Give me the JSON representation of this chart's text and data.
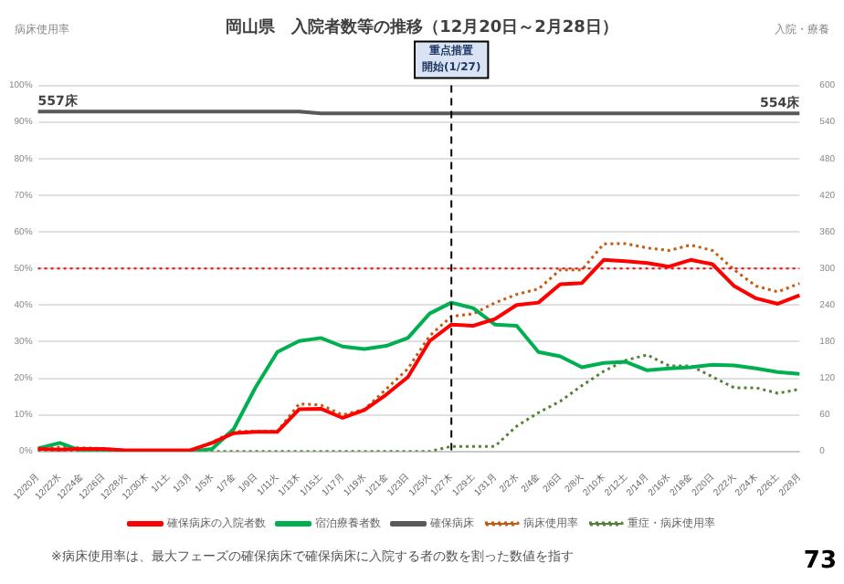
{
  "chart_data": {
    "type": "line",
    "title": "岡山県　入院者数等の推移（12月20日～2月28日）",
    "ylabel": "病床使用率",
    "y2label": "入院・療養",
    "categories": [
      "12/20月",
      "12/22水",
      "12/24金",
      "12/26日",
      "12/28火",
      "12/30木",
      "1/1土",
      "1/3月",
      "1/5水",
      "1/7金",
      "1/9日",
      "1/11火",
      "1/13木",
      "1/15土",
      "1/17月",
      "1/19水",
      "1/21金",
      "1/23日",
      "1/25火",
      "1/27木",
      "1/29土",
      "1/31月",
      "2/2水",
      "2/4金",
      "2/6日",
      "2/8火",
      "2/10木",
      "2/12土",
      "2/14月",
      "2/16水",
      "2/18金",
      "2/20日",
      "2/22火",
      "2/24木",
      "2/26土",
      "2/28月"
    ],
    "series": [
      {
        "name": "確保病床の入院者数",
        "color": "#ff0000",
        "axis": "y2",
        "line_style": "solid",
        "values": [
          4,
          3,
          4,
          4,
          2,
          2,
          2,
          2,
          14,
          30,
          32,
          32,
          69,
          70,
          55,
          68,
          93,
          122,
          181,
          208,
          206,
          217,
          240,
          244,
          274,
          276,
          314,
          312,
          309,
          303,
          314,
          307,
          271,
          251,
          242,
          256
        ]
      },
      {
        "name": "宿泊療養者数",
        "color": "#00b050",
        "axis": "y2",
        "line_style": "solid",
        "values": [
          5,
          14,
          1,
          0,
          0,
          0,
          0,
          0,
          4,
          37,
          105,
          163,
          181,
          186,
          172,
          168,
          173,
          186,
          226,
          244,
          235,
          208,
          206,
          163,
          156,
          138,
          145,
          147,
          133,
          136,
          138,
          142,
          141,
          136,
          130,
          127
        ]
      },
      {
        "name": "確保病床",
        "color": "#595959",
        "axis": "y2",
        "line_style": "solid",
        "values": [
          557,
          557,
          557,
          557,
          557,
          557,
          557,
          557,
          557,
          557,
          557,
          557,
          557,
          554,
          554,
          554,
          554,
          554,
          554,
          554,
          554,
          554,
          554,
          554,
          554,
          554,
          554,
          554,
          554,
          554,
          554,
          554,
          554,
          554,
          554,
          554
        ]
      },
      {
        "name": "病床使用率",
        "color": "#c55a11",
        "line_style": "dotted",
        "values": [
          0.5,
          1.2,
          1,
          0.8,
          0.3,
          0.3,
          0.3,
          0.3,
          2.5,
          5.5,
          5.5,
          5.5,
          13,
          12.7,
          10,
          11.5,
          17,
          22.6,
          31.6,
          36.9,
          37.6,
          40.6,
          42.9,
          44.4,
          49.6,
          49.6,
          56.7,
          56.8,
          55.6,
          54.9,
          56.4,
          54.9,
          49.6,
          45.2,
          43.6,
          45.9
        ]
      },
      {
        "name": "重症・病床使用率",
        "color": "#538135",
        "line_style": "dotted",
        "values": [
          0,
          0,
          0,
          0,
          0,
          0,
          0,
          0,
          0,
          0,
          0,
          0,
          0,
          0,
          0,
          0,
          0,
          0,
          0,
          1.4,
          1.4,
          1.4,
          6.9,
          10.6,
          13.7,
          18,
          21.9,
          24.9,
          26.4,
          23.4,
          23.4,
          20.4,
          17.4,
          17.4,
          15.9,
          17
        ]
      }
    ],
    "ylim": [
      0,
      100
    ],
    "yticks": [
      {
        "value": 0,
        "label": "0%"
      },
      {
        "value": 10,
        "label": "10%"
      },
      {
        "value": 20,
        "label": "20%"
      },
      {
        "value": 30,
        "label": "30%"
      },
      {
        "value": 40,
        "label": "40%"
      },
      {
        "value": 50,
        "label": "50%"
      },
      {
        "value": 60,
        "label": "60%"
      },
      {
        "value": 70,
        "label": "70%"
      },
      {
        "value": 80,
        "label": "80%"
      },
      {
        "value": 90,
        "label": "90%"
      },
      {
        "value": 100,
        "label": "100%"
      }
    ],
    "y2lim": [
      0,
      600
    ],
    "y2ticks": [
      0,
      60,
      120,
      180,
      240,
      300,
      360,
      420,
      480,
      540,
      600
    ],
    "ref_lines": [
      {
        "axis": "y",
        "value": 50,
        "label": null,
        "color": "#ff0000",
        "line_style": "dotted"
      },
      {
        "axis": "x",
        "value": "1/27木",
        "label": "重点措置開始(1/27)",
        "color": "#000000",
        "line_style": "dashed"
      }
    ],
    "annotations": [
      "557床",
      "554床",
      "※病床使用率は、最大フェーズの確保病床で確保病床に入院する者の数を割った数値を指す",
      "73"
    ],
    "grid": "y",
    "legend": "bottom",
    "marker": "none"
  }
}
